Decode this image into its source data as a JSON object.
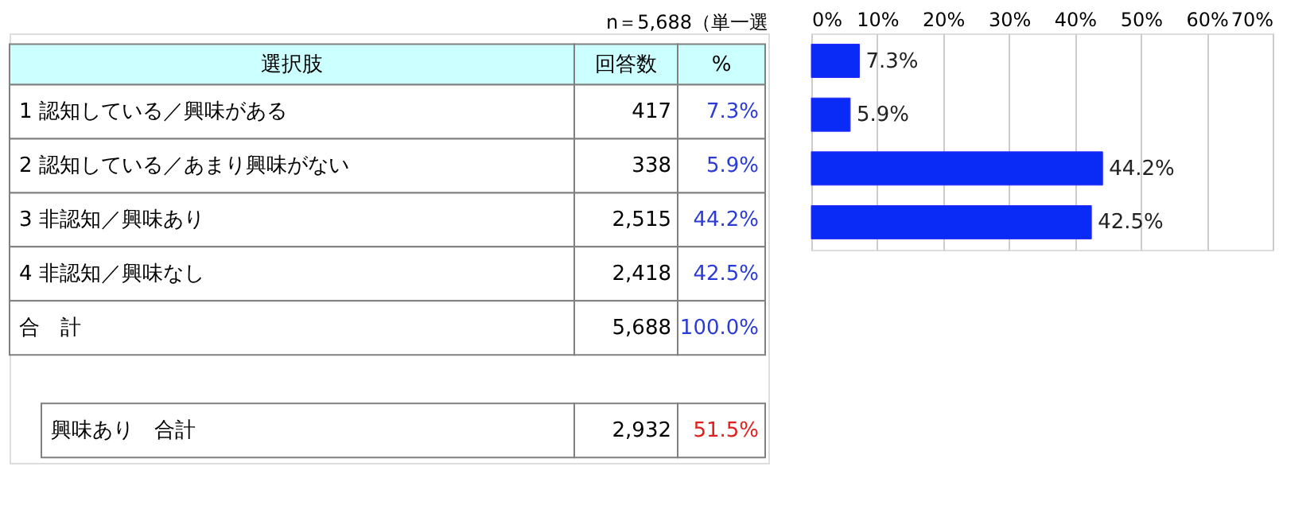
{
  "chart_data": [
    {
      "type": "other",
      "subtitle": "n＝5,688（単一選",
      "annotations": [
        "選択肢",
        "回答数",
        "%",
        "1 認知している／興味がある",
        "417",
        "7.3%",
        "2 認知している／あまり興味がない",
        "338",
        "5.9%",
        "3 非認知／興味あり",
        "2,515",
        "44.2%",
        "4 非認知／興味なし",
        "2,418",
        "42.5%",
        "合　計",
        "5,688",
        "100.0%",
        "興味あり　合計",
        "2,932",
        "51.5%"
      ]
    },
    {
      "type": "bar",
      "orientation": "horizontal",
      "categories": [
        null,
        null,
        null,
        null
      ],
      "values": [
        7.3,
        5.9,
        44.2,
        42.5
      ],
      "color": "#0a2bf5",
      "value_labels": [
        "7.3%",
        "5.9%",
        "44.2%",
        "42.5%"
      ],
      "xlim": [
        0,
        70
      ],
      "xticks": [
        {
          "value": 0,
          "label": "0%"
        },
        {
          "value": 10,
          "label": "10%"
        },
        {
          "value": 20,
          "label": "20%"
        },
        {
          "value": 30,
          "label": "30%"
        },
        {
          "value": 40,
          "label": "40%"
        },
        {
          "value": 50,
          "label": "50%"
        },
        {
          "value": 60,
          "label": "60%"
        },
        {
          "value": 70,
          "label": "70%"
        }
      ],
      "grid": "x",
      "tick_labels": "x"
    }
  ]
}
